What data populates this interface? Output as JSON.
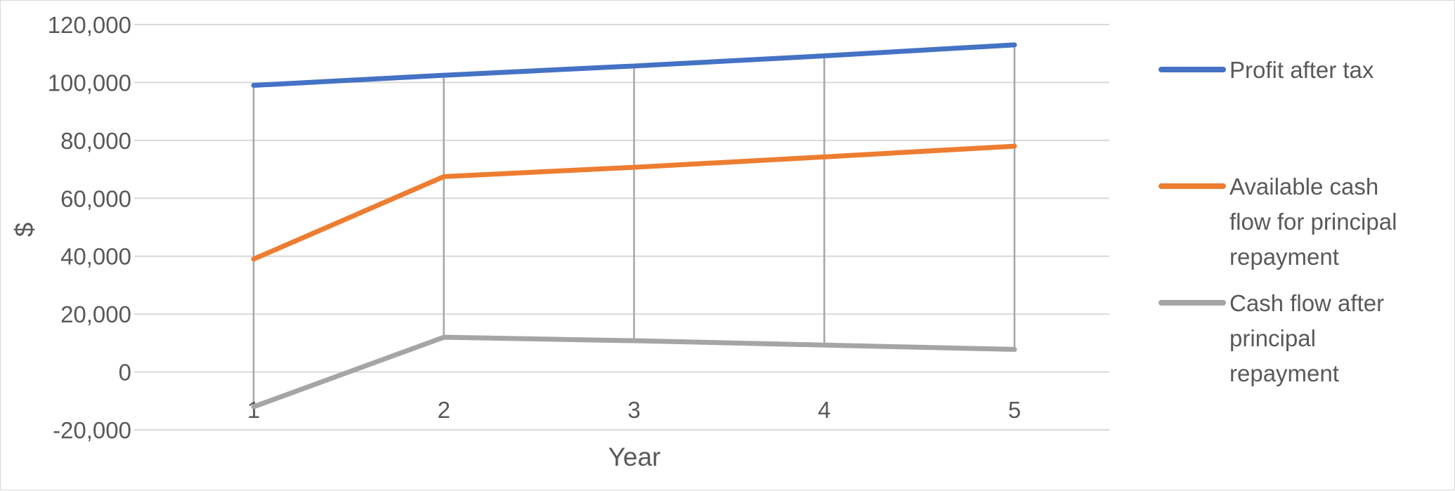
{
  "chart_data": {
    "type": "line",
    "title": "",
    "xlabel": "Year",
    "ylabel": "$",
    "categories": [
      "1",
      "2",
      "3",
      "4",
      "5"
    ],
    "ylim": [
      -20000,
      120000
    ],
    "ytick_step": 20000,
    "ytick_labels": [
      "-20,000",
      "0",
      "20,000",
      "40,000",
      "60,000",
      "80,000",
      "100,000",
      "120,000"
    ],
    "grid": true,
    "vertical_drop_lines": true,
    "legend_position": "right",
    "series": [
      {
        "name": "Profit after tax",
        "name_lines": [
          "Profit after tax"
        ],
        "color": "#4472C4",
        "values": [
          99000,
          102500,
          105700,
          109200,
          113000
        ]
      },
      {
        "name": "Available cash flow for principal repayment",
        "name_lines": [
          "Available cash",
          "flow for principal",
          "repayment"
        ],
        "color": "#ED7D31",
        "values": [
          39000,
          67500,
          70700,
          74300,
          78000
        ]
      },
      {
        "name": "Cash flow after principal repayment",
        "name_lines": [
          "Cash flow after",
          "principal",
          "repayment"
        ],
        "color": "#A5A5A5",
        "values": [
          -12000,
          12000,
          10800,
          9300,
          7800
        ]
      }
    ]
  }
}
